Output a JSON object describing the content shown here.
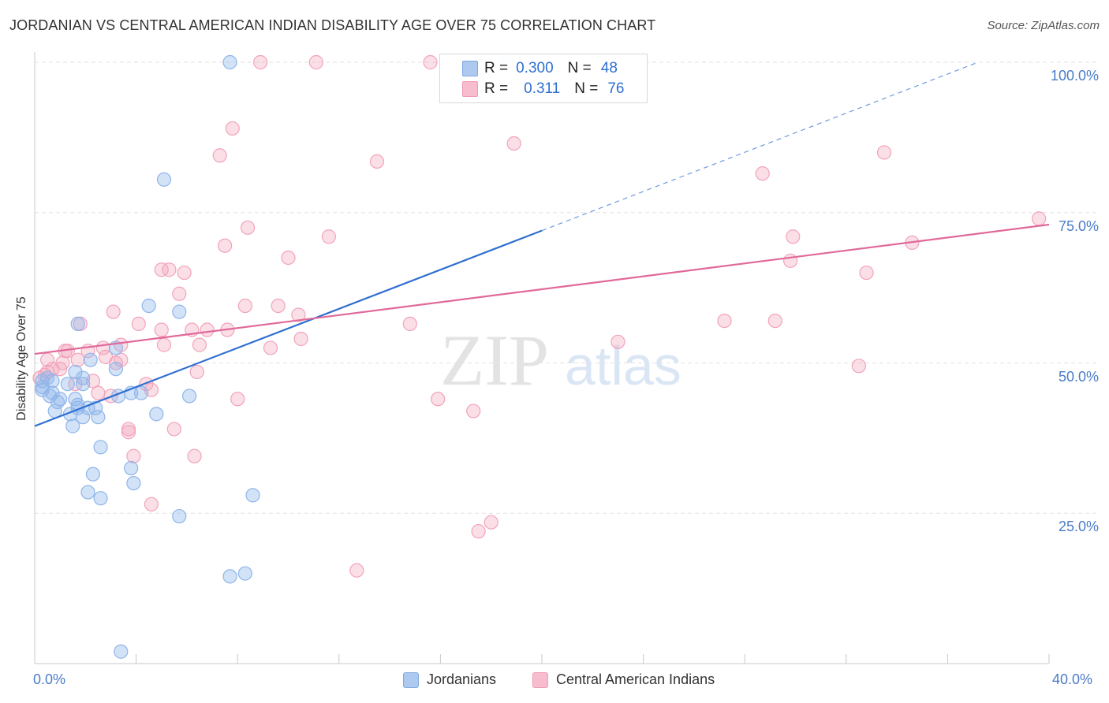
{
  "header": {
    "title": "JORDANIAN VS CENTRAL AMERICAN INDIAN DISABILITY AGE OVER 75 CORRELATION CHART",
    "source": "Source: ZipAtlas.com"
  },
  "watermark": {
    "zip": "ZIP",
    "atlas": "atlas"
  },
  "legend": {
    "r_label": "R =",
    "n_label": "N =",
    "rows": [
      {
        "r": "0.300",
        "n": "48",
        "color": "#aec9f0"
      },
      {
        "r": "0.311",
        "n": "76",
        "color": "#f7bccd"
      }
    ]
  },
  "bottom_legend": {
    "items": [
      {
        "label": "Jordanians",
        "color": "#aec9f0"
      },
      {
        "label": "Central American Indians",
        "color": "#f7bccd"
      }
    ]
  },
  "colors": {
    "blue_point": "#8fb6ea",
    "blue_line": "#2f6fd0",
    "pink_point": "#f2a3bb",
    "pink_line": "#e0699a",
    "tick_text": "#4a7cc9"
  },
  "chart_data": {
    "type": "scatter",
    "title": "JORDANIAN VS CENTRAL AMERICAN INDIAN DISABILITY AGE OVER 75 CORRELATION CHART",
    "xlabel": "",
    "ylabel": "Disability Age Over 75",
    "xlim": [
      0,
      40
    ],
    "ylim": [
      0,
      100
    ],
    "x_tick_labels": [
      "0.0%",
      "40.0%"
    ],
    "y_tick_labels": [
      "25.0%",
      "50.0%",
      "75.0%",
      "100.0%"
    ],
    "y_ticks": [
      25,
      50,
      75,
      100
    ],
    "grid": true,
    "legend_position": "top-center",
    "series": [
      {
        "name": "Jordanians",
        "r": 0.3,
        "n": 48,
        "trend": {
          "x": [
            0,
            20
          ],
          "y": [
            39.5,
            72
          ],
          "dashed_to": [
            37.2,
            100
          ]
        },
        "points": [
          [
            7.7,
            100
          ],
          [
            18.6,
            100
          ],
          [
            5.1,
            80.5
          ],
          [
            4.5,
            59.5
          ],
          [
            5.7,
            58.5
          ],
          [
            1.7,
            56.5
          ],
          [
            2.2,
            50.5
          ],
          [
            3.2,
            52.5
          ],
          [
            3.2,
            49
          ],
          [
            1.6,
            48.5
          ],
          [
            1.9,
            47.5
          ],
          [
            1.3,
            46.5
          ],
          [
            0.5,
            47.5
          ],
          [
            0.7,
            47
          ],
          [
            0.3,
            46
          ],
          [
            0.3,
            45.5
          ],
          [
            1.9,
            46.5
          ],
          [
            0.7,
            45
          ],
          [
            0.6,
            44.5
          ],
          [
            1.6,
            44
          ],
          [
            0.9,
            43.5
          ],
          [
            1.7,
            43
          ],
          [
            1.7,
            42.5
          ],
          [
            2.1,
            42.5
          ],
          [
            2.4,
            42.5
          ],
          [
            3.3,
            44.5
          ],
          [
            3.8,
            45
          ],
          [
            4.2,
            45
          ],
          [
            6.1,
            44.5
          ],
          [
            0.8,
            42
          ],
          [
            1.4,
            41.5
          ],
          [
            1.9,
            41
          ],
          [
            2.5,
            41
          ],
          [
            4.8,
            41.5
          ],
          [
            1.5,
            39.5
          ],
          [
            2.6,
            36
          ],
          [
            3.8,
            32.5
          ],
          [
            2.3,
            31.5
          ],
          [
            3.9,
            30
          ],
          [
            2.1,
            28.5
          ],
          [
            2.6,
            27.5
          ],
          [
            8.6,
            28
          ],
          [
            5.7,
            24.5
          ],
          [
            8.3,
            15
          ],
          [
            7.7,
            14.5
          ],
          [
            3.4,
            2
          ],
          [
            0.3,
            47
          ],
          [
            1.0,
            44
          ]
        ]
      },
      {
        "name": "Central American Indians",
        "r": 0.311,
        "n": 76,
        "trend": {
          "x": [
            0,
            40
          ],
          "y": [
            51.5,
            73
          ]
        },
        "points": [
          [
            8.9,
            100
          ],
          [
            11.1,
            100
          ],
          [
            15.6,
            100
          ],
          [
            7.8,
            89
          ],
          [
            18.9,
            86.5
          ],
          [
            7.3,
            84.5
          ],
          [
            13.5,
            83.5
          ],
          [
            33.5,
            85
          ],
          [
            28.7,
            81.5
          ],
          [
            39.6,
            74
          ],
          [
            8.4,
            72.5
          ],
          [
            11.6,
            71
          ],
          [
            29.9,
            71
          ],
          [
            34.6,
            70
          ],
          [
            7.5,
            69.5
          ],
          [
            10.0,
            67.5
          ],
          [
            29.8,
            67
          ],
          [
            32.8,
            65
          ],
          [
            5.0,
            65.5
          ],
          [
            5.3,
            65.5
          ],
          [
            5.9,
            65
          ],
          [
            5.7,
            61.5
          ],
          [
            8.3,
            59.5
          ],
          [
            9.6,
            59.5
          ],
          [
            3.1,
            58.5
          ],
          [
            10.4,
            58
          ],
          [
            1.8,
            56.5
          ],
          [
            4.1,
            56.5
          ],
          [
            5.0,
            55.5
          ],
          [
            6.2,
            55.5
          ],
          [
            6.8,
            55.5
          ],
          [
            7.6,
            55.5
          ],
          [
            14.8,
            56.5
          ],
          [
            27.2,
            57
          ],
          [
            29.2,
            57
          ],
          [
            10.5,
            54
          ],
          [
            5.1,
            53
          ],
          [
            6.5,
            53
          ],
          [
            3.4,
            53
          ],
          [
            2.7,
            52.5
          ],
          [
            2.1,
            52
          ],
          [
            1.2,
            52
          ],
          [
            0.5,
            50.5
          ],
          [
            1.1,
            50
          ],
          [
            1.7,
            50.5
          ],
          [
            9.3,
            52.5
          ],
          [
            23.0,
            53.5
          ],
          [
            3.4,
            50.5
          ],
          [
            3.2,
            50
          ],
          [
            1.0,
            49
          ],
          [
            0.5,
            48.5
          ],
          [
            0.4,
            48
          ],
          [
            0.2,
            47.5
          ],
          [
            32.5,
            49.5
          ],
          [
            6.4,
            48.5
          ],
          [
            2.3,
            47
          ],
          [
            1.6,
            46.5
          ],
          [
            4.4,
            46.5
          ],
          [
            2.5,
            45
          ],
          [
            3.0,
            44.5
          ],
          [
            8.0,
            44
          ],
          [
            15.9,
            44
          ],
          [
            17.3,
            42
          ],
          [
            3.7,
            39
          ],
          [
            5.5,
            39
          ],
          [
            3.7,
            38.5
          ],
          [
            3.9,
            34.5
          ],
          [
            6.3,
            34.5
          ],
          [
            4.6,
            26.5
          ],
          [
            18.0,
            23.5
          ],
          [
            17.5,
            22
          ],
          [
            12.7,
            15.5
          ],
          [
            0.7,
            49
          ],
          [
            1.3,
            52
          ],
          [
            2.8,
            51
          ],
          [
            4.6,
            45.5
          ]
        ]
      }
    ]
  }
}
